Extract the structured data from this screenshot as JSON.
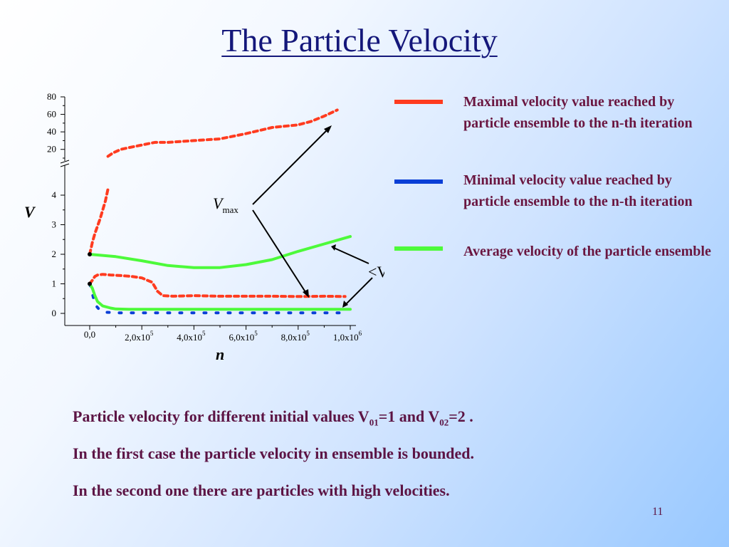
{
  "slide": {
    "title": "The Particle Velocity",
    "page_number": "11",
    "caption": {
      "line1_prefix": "Particle velocity for different initial values V",
      "line1_sub1": "01",
      "line1_mid": "=1 and V",
      "line1_sub2": "02",
      "line1_suffix": "=2 .",
      "line2": "In the first case the particle velocity in ensemble is bounded.",
      "line3": "In the second one there are particles with high velocities."
    }
  },
  "legend": [
    {
      "label": "Maximal velocity value reached by particle ensemble to the n-th iteration",
      "color": "#ff3b1f"
    },
    {
      "label": "Minimal velocity value reached by particle ensemble to the n-th iteration",
      "color": "#0a3fd6"
    },
    {
      "label": "Average velocity of the particle ensemble",
      "color": "#4dfa3a"
    }
  ],
  "annotations": {
    "vmax_main": "V",
    "vmax_sub": "max",
    "vavg": "<V>"
  },
  "chart_data": {
    "type": "line",
    "xlabel": "n",
    "ylabel": "V",
    "x_ticks": [
      "0,0",
      "2,0x10",
      "4,0x10",
      "6,0x10",
      "8,0x10",
      "1,0x10"
    ],
    "x_tick_exponents": [
      "",
      "5",
      "5",
      "5",
      "5",
      "6"
    ],
    "x_range": [
      0,
      1000000
    ],
    "y_lower_range": [
      0,
      4
    ],
    "y_lower_ticks": [
      "0",
      "1",
      "2",
      "3",
      "4"
    ],
    "y_upper_range": [
      10,
      80
    ],
    "y_upper_ticks": [
      "20",
      "40",
      "60",
      "80"
    ],
    "axis_break": true,
    "grid": false,
    "initial_points": [
      {
        "x": 0,
        "y": 1
      },
      {
        "x": 0,
        "y": 2
      }
    ],
    "series": [
      {
        "name": "V01=1 max",
        "color": "#ff3b1f",
        "style": "dashed",
        "x": [
          0,
          10000,
          20000,
          30000,
          50000,
          80000,
          120000,
          160000,
          200000,
          240000,
          260000,
          280000,
          320000,
          400000,
          500000,
          600000,
          700000,
          800000,
          900000,
          980000
        ],
        "y": [
          1.0,
          1.12,
          1.25,
          1.3,
          1.32,
          1.3,
          1.28,
          1.25,
          1.2,
          1.05,
          0.75,
          0.6,
          0.58,
          0.6,
          0.58,
          0.58,
          0.58,
          0.57,
          0.58,
          0.57
        ]
      },
      {
        "name": "V01=1 min",
        "color": "#0a3fd6",
        "style": "dashed",
        "x": [
          0,
          8000,
          15000,
          25000,
          40000,
          60000,
          80000,
          100000,
          150000,
          300000,
          500000,
          700000,
          900000,
          980000
        ],
        "y": [
          1.0,
          0.75,
          0.5,
          0.25,
          0.1,
          0.04,
          0.03,
          0.02,
          0.02,
          0.02,
          0.02,
          0.02,
          0.02,
          0.02
        ]
      },
      {
        "name": "V01=1 average",
        "color": "#4dfa3a",
        "style": "solid",
        "x": [
          0,
          10000,
          20000,
          30000,
          50000,
          80000,
          100000,
          150000,
          300000,
          500000,
          700000,
          900000,
          1000000
        ],
        "y": [
          1.0,
          0.85,
          0.6,
          0.4,
          0.25,
          0.18,
          0.15,
          0.14,
          0.14,
          0.14,
          0.14,
          0.14,
          0.14
        ]
      },
      {
        "name": "V02=2 average",
        "color": "#4dfa3a",
        "style": "solid",
        "x": [
          0,
          100000,
          200000,
          300000,
          400000,
          500000,
          600000,
          700000,
          800000,
          900000,
          1000000
        ],
        "y": [
          2.0,
          1.92,
          1.78,
          1.62,
          1.55,
          1.55,
          1.65,
          1.82,
          2.1,
          2.35,
          2.6
        ]
      },
      {
        "name": "V02=2 max (lower panel)",
        "color": "#ff3b1f",
        "style": "dashed",
        "x": [
          0,
          10000,
          20000,
          40000,
          60000,
          70000
        ],
        "y": [
          2.0,
          2.4,
          2.7,
          3.2,
          3.8,
          4.2
        ]
      },
      {
        "name": "V02=2 max (upper panel)",
        "color": "#ff3b1f",
        "style": "dashed",
        "x": [
          70000,
          90000,
          120000,
          150000,
          250000,
          300000,
          400000,
          500000,
          600000,
          700000,
          800000,
          850000,
          900000,
          950000
        ],
        "y": [
          12,
          16,
          20,
          22,
          28,
          28,
          30,
          32,
          38,
          45,
          48,
          52,
          58,
          65
        ]
      }
    ]
  }
}
